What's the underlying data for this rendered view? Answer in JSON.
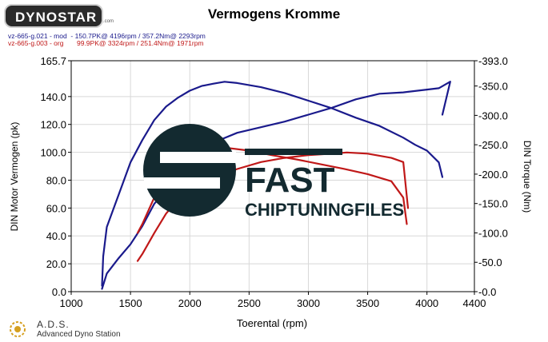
{
  "header": {
    "logo_text": "DYNOSTAR",
    "logo_subtext": ".com",
    "title": "Vermogens Kromme",
    "runs": [
      {
        "label": "vz-665-g.021 - mod  - 150.7PK@ 4196rpm / 357.2Nm@ 2293rpm",
        "color": "#1a1a8c"
      },
      {
        "label": "vz-665-g.003 - org       99.9PK@ 3324rpm / 251.4Nm@ 1971rpm",
        "color": "#c01818"
      }
    ]
  },
  "watermark": {
    "line1": "FAST",
    "line2": "CHIPTUNINGFILES"
  },
  "footer": {
    "brand": "A.D.S.",
    "subtitle": "Advanced Dyno Station"
  },
  "chart_data": {
    "type": "line",
    "title": "Vermogens Kromme",
    "xlabel": "Toerental (rpm)",
    "ylabel": "DIN Motor Vermogen (pk)",
    "y2label": "DIN Torque (Nm)",
    "xlim": [
      1000,
      4400
    ],
    "ylim": [
      0,
      165.7
    ],
    "y2lim": [
      0,
      393.0
    ],
    "x_ticks": [
      1000,
      1500,
      2000,
      2500,
      3000,
      3500,
      4000,
      4400
    ],
    "y_ticks": [
      "0.0",
      "20.0",
      "40.0",
      "60.0",
      "80.0",
      "100.0",
      "120.0",
      "140.0",
      "165.7"
    ],
    "y2_ticks": [
      "-0.0",
      "-50.0",
      "-100.0",
      "-150.0",
      "-200.0",
      "-250.0",
      "-300.0",
      "-350.0",
      "-393.0"
    ],
    "grid": true,
    "series": [
      {
        "name": "vz-665-g.021 - mod",
        "axis": "left",
        "color": "#1a1a8c",
        "x": [
          1260,
          1300,
          1400,
          1500,
          1600,
          1700,
          1800,
          1900,
          2000,
          2200,
          2400,
          2600,
          2800,
          3000,
          3200,
          3400,
          3600,
          3800,
          4000,
          4100,
          4196,
          4130
        ],
        "y": [
          2,
          13,
          24,
          34,
          47,
          63,
          73,
          86,
          96,
          107,
          114,
          118,
          122,
          127,
          132,
          138,
          142,
          143,
          145,
          146,
          150.7,
          127
        ]
      },
      {
        "name": "vz-665-g.021 - mod",
        "axis": "right",
        "color": "#1a1a8c",
        "x": [
          1260,
          1270,
          1300,
          1400,
          1500,
          1600,
          1700,
          1800,
          1900,
          2000,
          2100,
          2200,
          2293,
          2400,
          2600,
          2800,
          3000,
          3200,
          3400,
          3600,
          3800,
          3900,
          4000,
          4100,
          4130
        ],
        "y": [
          10,
          60,
          110,
          165,
          220,
          258,
          292,
          315,
          330,
          342,
          350,
          354,
          357.2,
          355,
          348,
          338,
          325,
          312,
          296,
          282,
          262,
          250,
          240,
          220,
          195
        ]
      },
      {
        "name": "vz-665-g.003 - org",
        "axis": "left",
        "color": "#c01818",
        "x": [
          1560,
          1600,
          1700,
          1800,
          1900,
          2000,
          2200,
          2400,
          2600,
          2800,
          3000,
          3200,
          3324,
          3500,
          3700,
          3800,
          3840
        ],
        "y": [
          22,
          27,
          42,
          56,
          66,
          74,
          82,
          88,
          93,
          96,
          98,
          99,
          99.9,
          99,
          96,
          93,
          60
        ]
      },
      {
        "name": "vz-665-g.003 - org",
        "axis": "right",
        "color": "#c01818",
        "x": [
          1560,
          1600,
          1700,
          1800,
          1900,
          1971,
          2100,
          2300,
          2500,
          2700,
          2900,
          3100,
          3300,
          3500,
          3700,
          3800,
          3830
        ],
        "y": [
          100,
          115,
          160,
          205,
          240,
          251.4,
          248,
          245,
          240,
          232,
          225,
          217,
          209,
          200,
          188,
          160,
          115
        ]
      }
    ]
  }
}
